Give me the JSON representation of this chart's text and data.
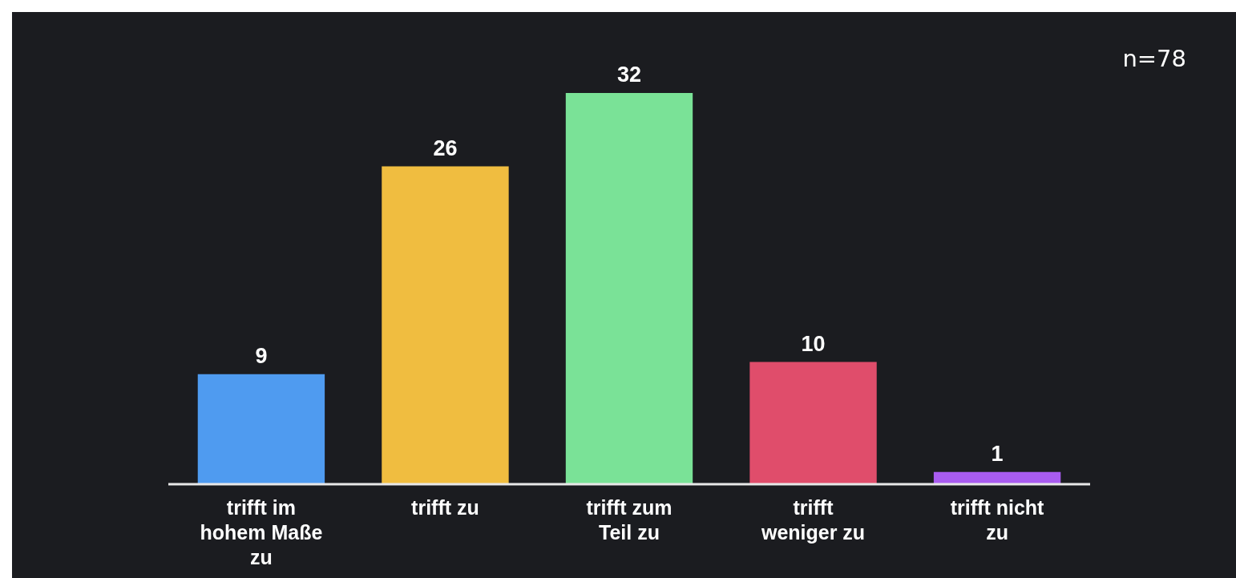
{
  "chart_data": {
    "type": "bar",
    "categories": [
      "trifft im hohem Maße zu",
      "trifft zu",
      "trifft zum Teil zu",
      "trifft weniger zu",
      "trifft nicht zu"
    ],
    "values": [
      9,
      26,
      32,
      10,
      1
    ],
    "colors": [
      "#4f9bf0",
      "#f0bd40",
      "#7ae297",
      "#e04d6b",
      "#a95cf0"
    ],
    "data_labels": true,
    "annotations": [
      "n=78"
    ]
  }
}
